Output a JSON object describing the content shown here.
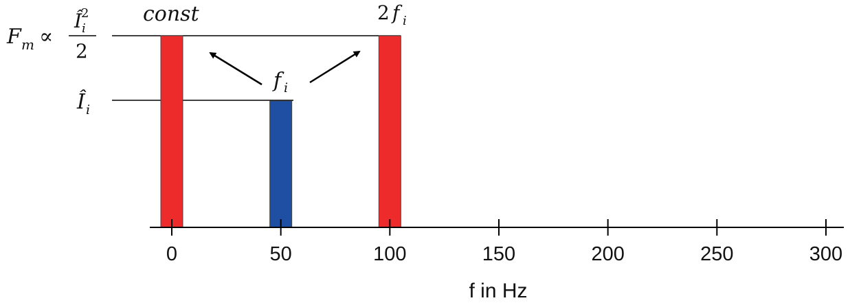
{
  "chart_data": {
    "type": "bar",
    "x_unit": "Hz",
    "xlabel": "f in Hz",
    "ylabel": "",
    "title": "",
    "xlim": [
      0,
      300
    ],
    "x_ticks": [
      0,
      50,
      100,
      150,
      200,
      250,
      300
    ],
    "grid": false,
    "series": [
      {
        "name": "const",
        "x": 0,
        "color": "#ee2b2b",
        "level": "F_m"
      },
      {
        "name": "f_i",
        "x": 50,
        "color": "#1f4fa3",
        "level": "I_i"
      },
      {
        "name": "2 f_i",
        "x": 100,
        "color": "#ee2b2b",
        "level": "F_m"
      }
    ],
    "levels": {
      "F_m": {
        "label": "F_m ∝ Î_i² / 2",
        "relative_value": 1.0
      },
      "I_i": {
        "label": "Î_i",
        "relative_value": 0.66
      }
    },
    "annotations": [
      "const",
      "2 f_i",
      "f_i"
    ]
  }
}
